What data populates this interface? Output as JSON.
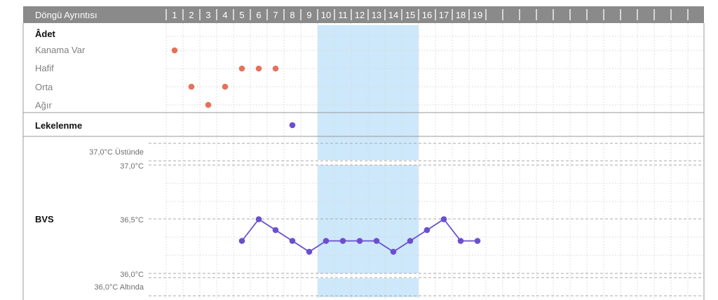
{
  "header": {
    "title": "Döngü Ayrıntısı"
  },
  "chart_data": {
    "type": "scatter",
    "days": [
      "1",
      "2",
      "3",
      "4",
      "5",
      "6",
      "7",
      "8",
      "9",
      "10",
      "11",
      "12",
      "13",
      "14",
      "15",
      "16",
      "17",
      "18",
      "19"
    ],
    "highlight_days": [
      10,
      15
    ],
    "colors": {
      "header_bg": "#8a8a8a",
      "flow": "#e8705a",
      "spotting": "#6a4fcf",
      "bbt": "#6a4fcf",
      "highlight": "#cde8fa"
    },
    "period": {
      "section_label": "Âdet",
      "levels": [
        "Kanama Var",
        "Hafif",
        "Orta",
        "Ağır"
      ],
      "points": [
        {
          "day": 1,
          "level": "Kanama Var"
        },
        {
          "day": 2,
          "level": "Orta"
        },
        {
          "day": 3,
          "level": "Ağır"
        },
        {
          "day": 4,
          "level": "Orta"
        },
        {
          "day": 5,
          "level": "Hafif"
        },
        {
          "day": 6,
          "level": "Hafif"
        },
        {
          "day": 7,
          "level": "Hafif"
        }
      ]
    },
    "spotting": {
      "label": "Lekelenme",
      "days": [
        8
      ]
    },
    "bbt": {
      "label": "BVS",
      "axis_labels": {
        "above": "37,0°C Üstünde",
        "top": "37,0°C",
        "mid": "36,5°C",
        "bottom": "36,0°C",
        "below": "36,0°C Altında"
      },
      "ylim": [
        36.0,
        37.0
      ],
      "points": [
        {
          "day": 5,
          "value": 36.3
        },
        {
          "day": 6,
          "value": 36.5
        },
        {
          "day": 7,
          "value": 36.4
        },
        {
          "day": 8,
          "value": 36.3
        },
        {
          "day": 9,
          "value": 36.2
        },
        {
          "day": 10,
          "value": 36.3
        },
        {
          "day": 11,
          "value": 36.3
        },
        {
          "day": 12,
          "value": 36.3
        },
        {
          "day": 13,
          "value": 36.3
        },
        {
          "day": 14,
          "value": 36.2
        },
        {
          "day": 15,
          "value": 36.3
        },
        {
          "day": 16,
          "value": 36.4
        },
        {
          "day": 17,
          "value": 36.5
        },
        {
          "day": 18,
          "value": 36.3
        },
        {
          "day": 19,
          "value": 36.3
        }
      ]
    }
  }
}
